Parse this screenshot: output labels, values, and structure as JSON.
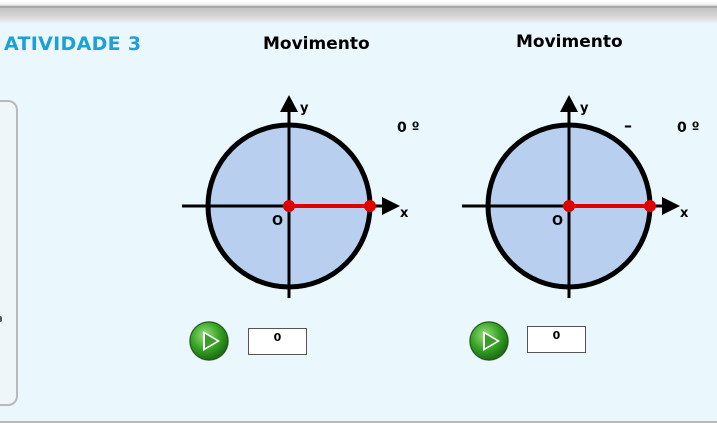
{
  "activity_title": "ATIVIDADE 3",
  "panels": [
    {
      "title": "Movimento",
      "angle": "0 º",
      "sign": "",
      "origin_label": "O",
      "x_label": "x",
      "y_label": "y",
      "value": "0"
    },
    {
      "title": "Movimento",
      "angle": "0 º",
      "sign": "–",
      "origin_label": "O",
      "x_label": "x",
      "y_label": "y",
      "value": "0"
    }
  ],
  "icons": {
    "play": "play-icon"
  },
  "colors": {
    "activity_title": "#1e9fd6",
    "circle_fill": "#b8cff0",
    "radius_line": "#e00000",
    "play_green": "#2f9a1f"
  }
}
